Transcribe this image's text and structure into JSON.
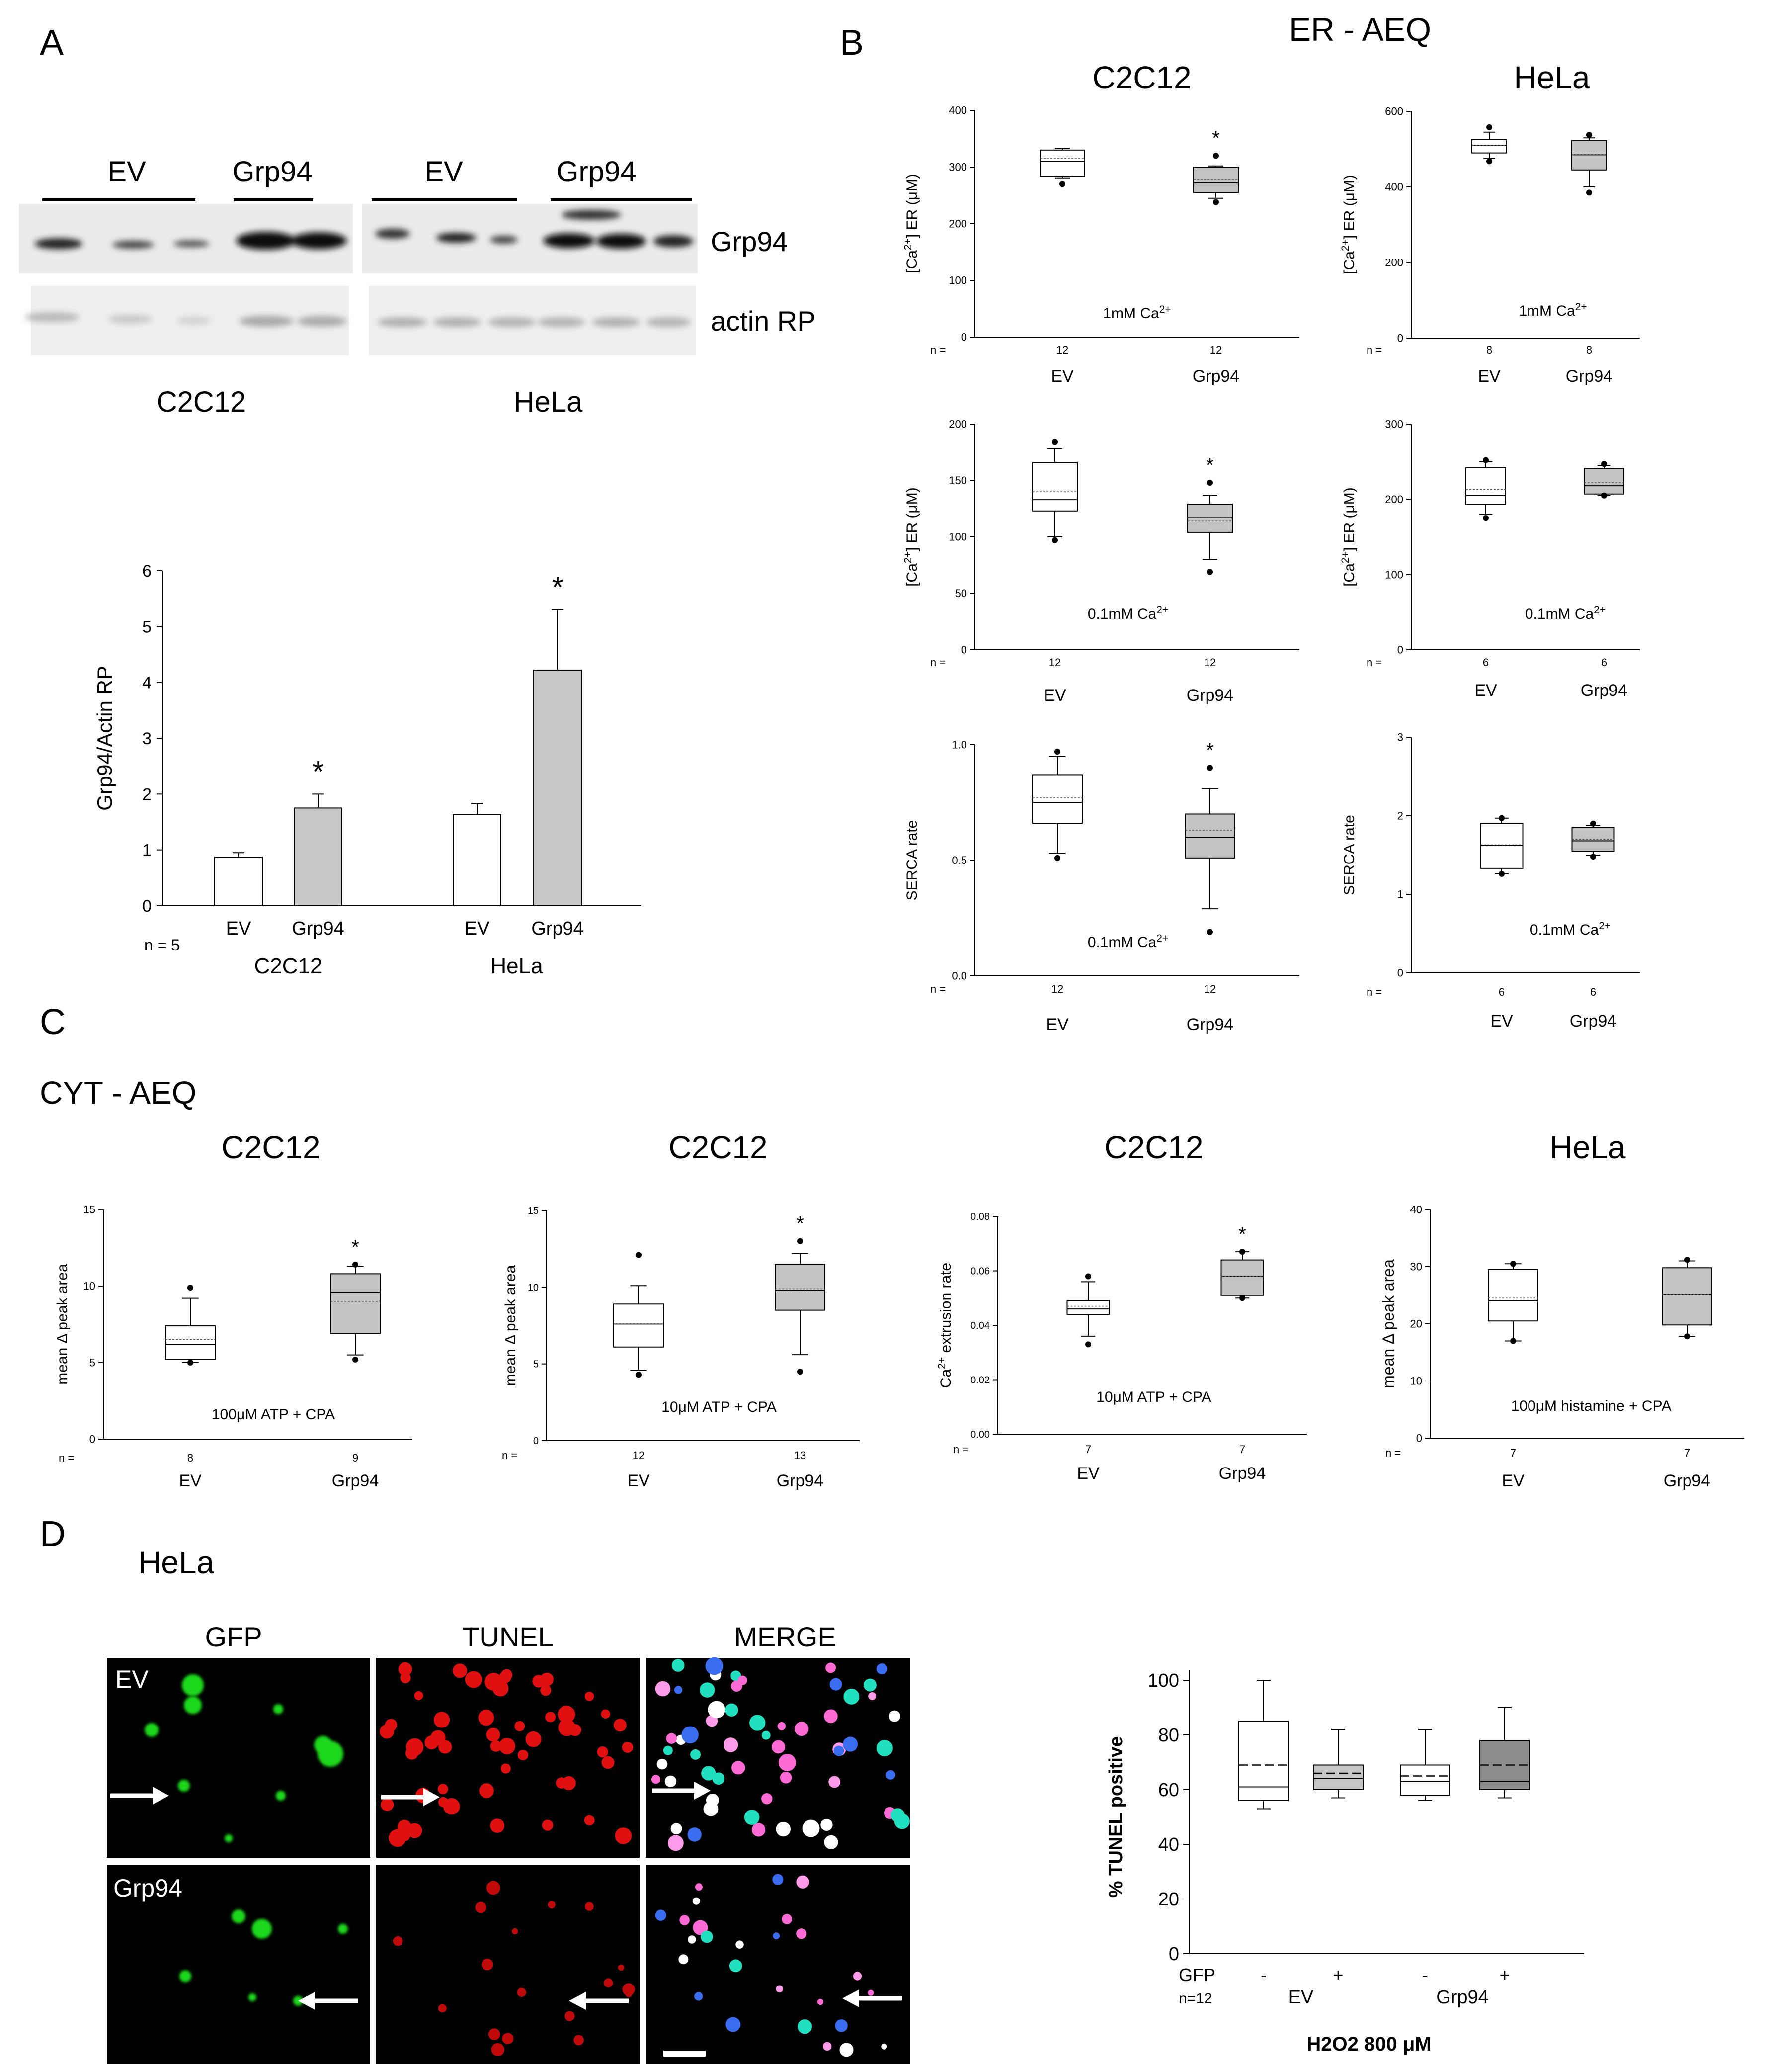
{
  "panels": {
    "A": "A",
    "B": "B",
    "C": "C",
    "D": "D"
  },
  "blot": {
    "groups": [
      {
        "label": "EV"
      },
      {
        "label": "Grp94"
      },
      {
        "label": "EV"
      },
      {
        "label": "Grp94"
      }
    ],
    "row_labels": [
      "Grp94",
      "actin RP"
    ],
    "cell_lines": [
      "C2C12",
      "HeLa"
    ]
  },
  "titles": {
    "er_aeq": "ER - AEQ",
    "cyt_aeq": "CYT - AEQ",
    "c2c12": "C2C12",
    "hela": "HeLa",
    "d_hela": "HeLa"
  },
  "images": {
    "columns": [
      "GFP",
      "TUNEL",
      "MERGE"
    ],
    "rows": [
      "EV",
      "Grp94"
    ]
  },
  "chart_data": [
    {
      "id": "A-bar",
      "type": "bar",
      "ylabel": "Grp94/Actin RP",
      "ylim": [
        0,
        6
      ],
      "yticks": [
        "0",
        "1",
        "2",
        "3",
        "4",
        "5",
        "6"
      ],
      "categories": [
        "EV",
        "Grp94",
        "EV",
        "Grp94"
      ],
      "groups": [
        "C2C12",
        "HeLa"
      ],
      "n_label": "n = 5",
      "values": [
        0.87,
        1.75,
        1.63,
        4.22
      ],
      "errors": [
        0.08,
        0.25,
        0.2,
        1.08
      ],
      "significant": [
        false,
        true,
        false,
        true
      ],
      "sig_mark": "*"
    },
    {
      "id": "B1",
      "type": "box",
      "ylabel": "[Ca2+] ER (μM)",
      "ylim": [
        0,
        400
      ],
      "yticks": [
        "0",
        "100",
        "200",
        "300",
        "400"
      ],
      "condition": "1mM Ca2+",
      "n_prefix": "n =",
      "categories": [
        "EV",
        "Grp94"
      ],
      "n": [
        "12",
        "12"
      ],
      "sig": [
        false,
        true
      ],
      "boxes": [
        {
          "q1": 283,
          "median": 310,
          "q3": 330,
          "mean": 315,
          "wlo": 280,
          "whi": 333,
          "out": [
            270
          ]
        },
        {
          "q1": 255,
          "median": 272,
          "q3": 300,
          "mean": 278,
          "wlo": 245,
          "whi": 302,
          "out": [
            238,
            320
          ]
        }
      ]
    },
    {
      "id": "B2",
      "type": "box",
      "ylabel": "[Ca2+] ER (μM)",
      "ylim": [
        0,
        600
      ],
      "yticks": [
        "0",
        "200",
        "400",
        "600"
      ],
      "condition": "1mM Ca2+",
      "n_prefix": "n =",
      "categories": [
        "EV",
        "Grp94"
      ],
      "n": [
        "8",
        "8"
      ],
      "sig": [
        false,
        false
      ],
      "boxes": [
        {
          "q1": 490,
          "median": 510,
          "q3": 525,
          "mean": 510,
          "wlo": 475,
          "whi": 545,
          "out": [
            468,
            558
          ]
        },
        {
          "q1": 445,
          "median": 485,
          "q3": 523,
          "mean": 485,
          "wlo": 400,
          "whi": 530,
          "out": [
            385,
            538
          ]
        }
      ]
    },
    {
      "id": "B3",
      "type": "box",
      "ylabel": "[Ca2+] ER (μM)",
      "ylim": [
        0,
        200
      ],
      "yticks": [
        "0",
        "50",
        "100",
        "150",
        "200"
      ],
      "condition": "0.1mM Ca2+",
      "n_prefix": "n =",
      "categories": [
        "EV",
        "Grp94"
      ],
      "n": [
        "12",
        "12"
      ],
      "sig": [
        false,
        true
      ],
      "boxes": [
        {
          "q1": 123,
          "median": 133,
          "q3": 166,
          "mean": 140,
          "wlo": 100,
          "whi": 178,
          "out": [
            97,
            184
          ]
        },
        {
          "q1": 104,
          "median": 117,
          "q3": 129,
          "mean": 114,
          "wlo": 80,
          "whi": 137,
          "out": [
            69,
            148
          ]
        }
      ]
    },
    {
      "id": "B4",
      "type": "box",
      "ylabel": "[Ca2+] ER (μM)",
      "ylim": [
        0,
        300
      ],
      "yticks": [
        "0",
        "100",
        "200",
        "300"
      ],
      "condition": "0.1mM Ca2+",
      "n_prefix": "n =",
      "categories": [
        "EV",
        "Grp94"
      ],
      "n": [
        "6",
        "6"
      ],
      "sig": [
        false,
        false
      ],
      "boxes": [
        {
          "q1": 193,
          "median": 205,
          "q3": 242,
          "mean": 213,
          "wlo": 180,
          "whi": 250,
          "out": [
            175,
            252
          ]
        },
        {
          "q1": 207,
          "median": 218,
          "q3": 241,
          "mean": 222,
          "wlo": 205,
          "whi": 245,
          "out": [
            205,
            247
          ]
        }
      ]
    },
    {
      "id": "B5",
      "type": "box",
      "ylabel": "SERCA rate",
      "ylim": [
        0,
        1
      ],
      "yticks": [
        "0.0",
        "0.5",
        "1.0"
      ],
      "condition": "0.1mM Ca2+",
      "n_prefix": "n =",
      "categories": [
        "EV",
        "Grp94"
      ],
      "n": [
        "12",
        "12"
      ],
      "sig": [
        false,
        true
      ],
      "boxes": [
        {
          "q1": 0.66,
          "median": 0.75,
          "q3": 0.87,
          "mean": 0.77,
          "wlo": 0.53,
          "whi": 0.95,
          "out": [
            0.51,
            0.97
          ]
        },
        {
          "q1": 0.51,
          "median": 0.6,
          "q3": 0.7,
          "mean": 0.63,
          "wlo": 0.29,
          "whi": 0.81,
          "out": [
            0.19,
            0.9
          ]
        }
      ]
    },
    {
      "id": "B6",
      "type": "box",
      "ylabel": "SERCA rate",
      "ylim": [
        0,
        3
      ],
      "yticks": [
        "0",
        "1",
        "2",
        "3"
      ],
      "condition": "0.1mM Ca2+",
      "n_prefix": "n =",
      "categories": [
        "EV",
        "Grp94"
      ],
      "n": [
        "6",
        "6"
      ],
      "sig": [
        false,
        false
      ],
      "boxes": [
        {
          "q1": 1.33,
          "median": 1.62,
          "q3": 1.9,
          "mean": 1.63,
          "wlo": 1.26,
          "whi": 1.97,
          "out": [
            1.26,
            1.97
          ]
        },
        {
          "q1": 1.55,
          "median": 1.68,
          "q3": 1.85,
          "mean": 1.7,
          "wlo": 1.5,
          "whi": 1.88,
          "out": [
            1.48,
            1.9
          ]
        }
      ]
    },
    {
      "id": "C1",
      "type": "box",
      "ylabel": "mean Δ peak area",
      "ylim": [
        0,
        15
      ],
      "yticks": [
        "0",
        "5",
        "10",
        "15"
      ],
      "condition": "100μM ATP + CPA",
      "n_prefix": "n =",
      "categories": [
        "EV",
        "Grp94"
      ],
      "n": [
        "8",
        "9"
      ],
      "sig": [
        false,
        true
      ],
      "boxes": [
        {
          "q1": 5.2,
          "median": 6.2,
          "q3": 7.4,
          "mean": 6.5,
          "wlo": 5.0,
          "whi": 9.2,
          "out": [
            5.0,
            9.9
          ]
        },
        {
          "q1": 6.9,
          "median": 9.6,
          "q3": 10.8,
          "mean": 9.0,
          "wlo": 5.5,
          "whi": 11.3,
          "out": [
            5.2,
            11.4
          ]
        }
      ]
    },
    {
      "id": "C2",
      "type": "box",
      "ylabel": "mean Δ peak area",
      "ylim": [
        0,
        15
      ],
      "yticks": [
        "0",
        "5",
        "10",
        "15"
      ],
      "condition": "10μM ATP + CPA",
      "n_prefix": "n =",
      "categories": [
        "EV",
        "Grp94"
      ],
      "n": [
        "12",
        "13"
      ],
      "sig": [
        false,
        true
      ],
      "boxes": [
        {
          "q1": 6.1,
          "median": 7.6,
          "q3": 8.9,
          "mean": 7.6,
          "wlo": 4.6,
          "whi": 10.1,
          "out": [
            4.3,
            12.1
          ]
        },
        {
          "q1": 8.5,
          "median": 9.8,
          "q3": 11.5,
          "mean": 9.9,
          "wlo": 5.6,
          "whi": 12.2,
          "out": [
            4.5,
            13.0
          ]
        }
      ]
    },
    {
      "id": "C3",
      "type": "box",
      "ylabel": "Ca2+ extrusion rate",
      "ylim": [
        0,
        0.08
      ],
      "yticks": [
        "0.00",
        "0.02",
        "0.04",
        "0.06",
        "0.08"
      ],
      "condition": "10μM ATP + CPA",
      "n_prefix": "n =",
      "categories": [
        "EV",
        "Grp94"
      ],
      "n": [
        "7",
        "7"
      ],
      "sig": [
        false,
        true
      ],
      "boxes": [
        {
          "q1": 0.044,
          "median": 0.046,
          "q3": 0.049,
          "mean": 0.047,
          "wlo": 0.036,
          "whi": 0.056,
          "out": [
            0.033,
            0.058
          ]
        },
        {
          "q1": 0.051,
          "median": 0.058,
          "q3": 0.064,
          "mean": 0.058,
          "wlo": 0.05,
          "whi": 0.067,
          "out": [
            0.05,
            0.067
          ]
        }
      ]
    },
    {
      "id": "C4",
      "type": "box",
      "ylabel": "mean Δ peak area",
      "ylim": [
        0,
        40
      ],
      "yticks": [
        "0",
        "10",
        "20",
        "30",
        "40"
      ],
      "condition": "100μM histamine + CPA",
      "n_prefix": "n =",
      "categories": [
        "EV",
        "Grp94"
      ],
      "n": [
        "7",
        "7"
      ],
      "sig": [
        false,
        false
      ],
      "boxes": [
        {
          "q1": 20.5,
          "median": 24,
          "q3": 29.5,
          "mean": 24.5,
          "wlo": 17,
          "whi": 30.5,
          "out": [
            17,
            30.5
          ]
        },
        {
          "q1": 19.8,
          "median": 25.2,
          "q3": 29.8,
          "mean": 25.2,
          "wlo": 17.8,
          "whi": 31,
          "out": [
            17.8,
            31.2
          ]
        }
      ]
    },
    {
      "id": "D-box",
      "type": "box",
      "ylabel": "% TUNEL positive",
      "ylim": [
        0,
        100
      ],
      "yticks": [
        "0",
        "20",
        "40",
        "60",
        "80",
        "100"
      ],
      "gfp_label": "GFP",
      "gfp": [
        "-",
        "+",
        "-",
        "+"
      ],
      "n_label": "n=12",
      "groups": [
        "EV",
        "Grp94"
      ],
      "xlabel": "H2O2 800 μM",
      "boxes": [
        {
          "q1": 56,
          "median": 61,
          "q3": 85,
          "mean": 69,
          "wlo": 53,
          "whi": 100,
          "fill": "#ffffff"
        },
        {
          "q1": 60,
          "median": 64,
          "q3": 69,
          "mean": 66,
          "wlo": 57,
          "whi": 82,
          "fill": "#c8c8c8"
        },
        {
          "q1": 58,
          "median": 63,
          "q3": 69,
          "mean": 65,
          "wlo": 56,
          "whi": 82,
          "fill": "#ffffff"
        },
        {
          "q1": 60,
          "median": 63,
          "q3": 78,
          "mean": 69,
          "wlo": 57,
          "whi": 90,
          "fill": "#8c8c8c"
        }
      ]
    }
  ]
}
